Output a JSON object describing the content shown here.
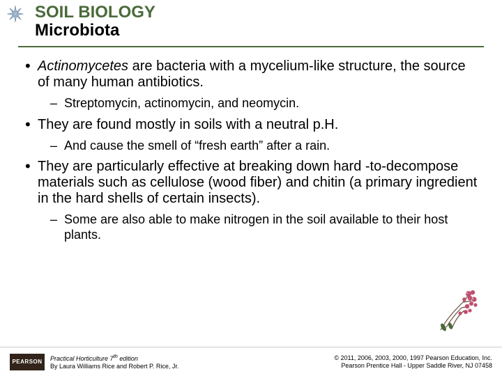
{
  "header": {
    "title": "SOIL BIOLOGY",
    "subtitle": "Microbiota"
  },
  "bullets": [
    {
      "level": 1,
      "html": "<span class=\"italic\">Actinomycetes</span> are bacteria with a mycelium-like structure, the source of many human antibiotics."
    },
    {
      "level": 2,
      "html": "Streptomycin, actinomycin, and neomycin."
    },
    {
      "level": 1,
      "html": "They are found mostly in soils with a neutral p.H."
    },
    {
      "level": 2,
      "html": "And cause the smell of “fresh earth” after a rain."
    },
    {
      "level": 1,
      "html": "They are particularly effective at breaking down hard -to-decompose materials such as cellulose (wood fiber) and chitin (a primary ingredient in the hard shells of certain insects)."
    },
    {
      "level": 2,
      "html": "Some are also able to make nitrogen in the soil available to their host plants."
    }
  ],
  "footer": {
    "logo_text": "PEARSON",
    "book_title": "Practical Horticulture 7",
    "book_title_suffix": " edition",
    "book_title_sup": "th",
    "byline": "By Laura Williams Rice and Robert P. Rice, Jr.",
    "copyright_line1": "© 2011, 2006, 2003, 2000, 1997 Pearson Education, Inc.",
    "copyright_line2": "Pearson Prentice Hall - Upper Saddle River, NJ 07458"
  },
  "colors": {
    "title_green": "#4a6a3a",
    "asterisk_blue": "#6d8fb3",
    "flower_pink": "#c05070",
    "flower_stem": "#6b4a3a"
  }
}
